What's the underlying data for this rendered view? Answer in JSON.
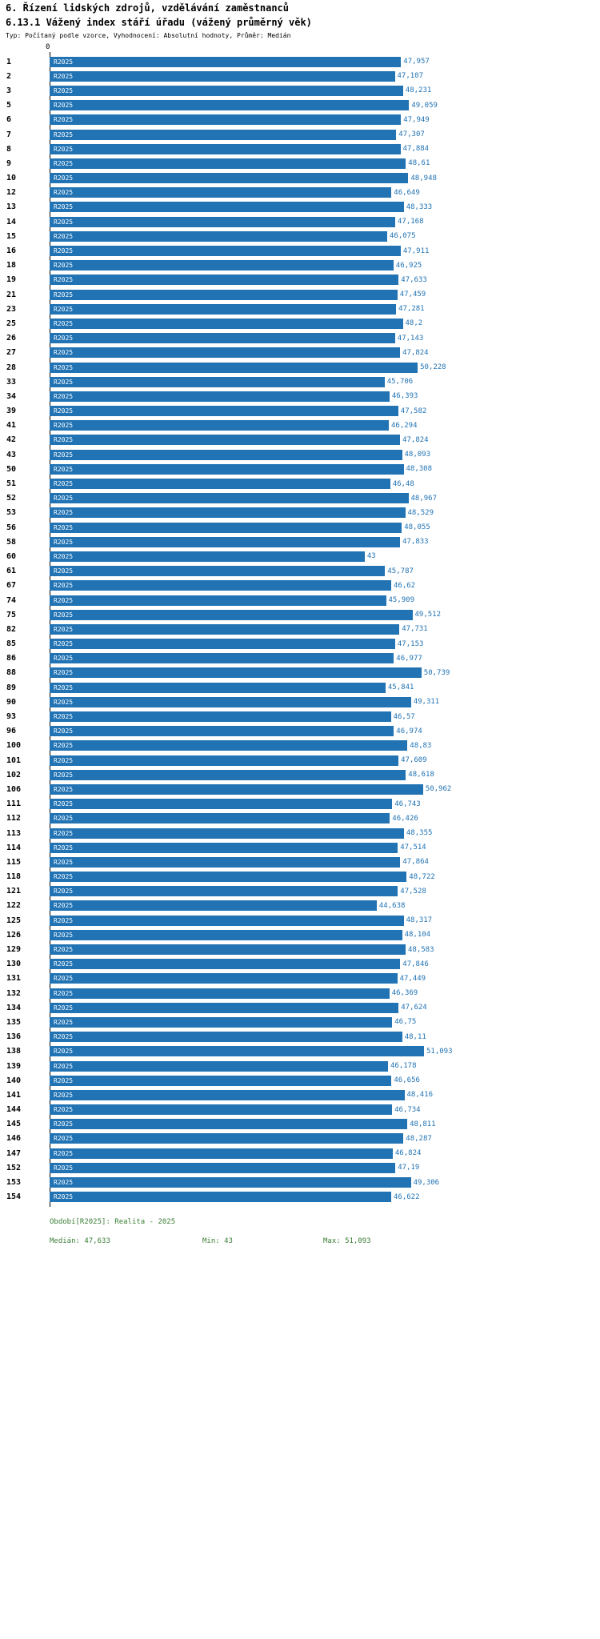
{
  "header": {
    "title_line1": "6. Řízení lidských zdrojů, vzdělávání zaměstnanců",
    "title_line2": "6.13.1 Vážený index stáří úřadu (vážený průměrný věk)",
    "subtitle": "Typ: Počítaný podle vzorce, Vyhodnocení: Absolutní hodnoty, Průměr: Medián"
  },
  "axis": {
    "zero_label": "0"
  },
  "footer": {
    "period": "Období[R2025]: Realita - 2025",
    "median": "Medián: 47,633",
    "min": "Min: 43",
    "max": "Max: 51,093"
  },
  "colors": {
    "bar": "#2173b4",
    "bar_label": "#ffffff",
    "value_label": "#2173b4",
    "footer_text": "#3a7d35",
    "row_number": "#000000"
  },
  "chart_data": {
    "type": "bar",
    "orientation": "horizontal",
    "title": "6.13.1 Vážený index stáří úřadu (vážený průměrný věk)",
    "series_label": "R2025",
    "xlim": [
      0,
      51.093
    ],
    "median": 47.633,
    "min": 43,
    "max": 51.093,
    "rows": [
      {
        "n": "1",
        "label": "47,957",
        "value": 47.957
      },
      {
        "n": "2",
        "label": "47,107",
        "value": 47.107
      },
      {
        "n": "3",
        "label": "48,231",
        "value": 48.231
      },
      {
        "n": "5",
        "label": "49,059",
        "value": 49.059
      },
      {
        "n": "6",
        "label": "47,949",
        "value": 47.949
      },
      {
        "n": "7",
        "label": "47,307",
        "value": 47.307
      },
      {
        "n": "8",
        "label": "47,884",
        "value": 47.884
      },
      {
        "n": "9",
        "label": "48,61",
        "value": 48.61
      },
      {
        "n": "10",
        "label": "48,948",
        "value": 48.948
      },
      {
        "n": "12",
        "label": "46,649",
        "value": 46.649
      },
      {
        "n": "13",
        "label": "48,333",
        "value": 48.333
      },
      {
        "n": "14",
        "label": "47,168",
        "value": 47.168
      },
      {
        "n": "15",
        "label": "46,075",
        "value": 46.075
      },
      {
        "n": "16",
        "label": "47,911",
        "value": 47.911
      },
      {
        "n": "18",
        "label": "46,925",
        "value": 46.925
      },
      {
        "n": "19",
        "label": "47,633",
        "value": 47.633
      },
      {
        "n": "21",
        "label": "47,459",
        "value": 47.459
      },
      {
        "n": "23",
        "label": "47,281",
        "value": 47.281
      },
      {
        "n": "25",
        "label": "48,2",
        "value": 48.2
      },
      {
        "n": "26",
        "label": "47,143",
        "value": 47.143
      },
      {
        "n": "27",
        "label": "47,824",
        "value": 47.824
      },
      {
        "n": "28",
        "label": "50,228",
        "value": 50.228
      },
      {
        "n": "33",
        "label": "45,706",
        "value": 45.706
      },
      {
        "n": "34",
        "label": "46,393",
        "value": 46.393
      },
      {
        "n": "39",
        "label": "47,582",
        "value": 47.582
      },
      {
        "n": "41",
        "label": "46,294",
        "value": 46.294
      },
      {
        "n": "42",
        "label": "47,824",
        "value": 47.824
      },
      {
        "n": "43",
        "label": "48,093",
        "value": 48.093
      },
      {
        "n": "50",
        "label": "48,308",
        "value": 48.308
      },
      {
        "n": "51",
        "label": "46,48",
        "value": 46.48
      },
      {
        "n": "52",
        "label": "48,967",
        "value": 48.967
      },
      {
        "n": "53",
        "label": "48,529",
        "value": 48.529
      },
      {
        "n": "56",
        "label": "48,055",
        "value": 48.055
      },
      {
        "n": "58",
        "label": "47,833",
        "value": 47.833
      },
      {
        "n": "60",
        "label": "43",
        "value": 43
      },
      {
        "n": "61",
        "label": "45,787",
        "value": 45.787
      },
      {
        "n": "67",
        "label": "46,62",
        "value": 46.62
      },
      {
        "n": "74",
        "label": "45,909",
        "value": 45.909
      },
      {
        "n": "75",
        "label": "49,512",
        "value": 49.512
      },
      {
        "n": "82",
        "label": "47,731",
        "value": 47.731
      },
      {
        "n": "85",
        "label": "47,153",
        "value": 47.153
      },
      {
        "n": "86",
        "label": "46,977",
        "value": 46.977
      },
      {
        "n": "88",
        "label": "50,739",
        "value": 50.739
      },
      {
        "n": "89",
        "label": "45,841",
        "value": 45.841
      },
      {
        "n": "90",
        "label": "49,311",
        "value": 49.311
      },
      {
        "n": "93",
        "label": "46,57",
        "value": 46.57
      },
      {
        "n": "96",
        "label": "46,974",
        "value": 46.974
      },
      {
        "n": "100",
        "label": "48,83",
        "value": 48.83
      },
      {
        "n": "101",
        "label": "47,609",
        "value": 47.609
      },
      {
        "n": "102",
        "label": "48,618",
        "value": 48.618
      },
      {
        "n": "106",
        "label": "50,962",
        "value": 50.962
      },
      {
        "n": "111",
        "label": "46,743",
        "value": 46.743
      },
      {
        "n": "112",
        "label": "46,426",
        "value": 46.426
      },
      {
        "n": "113",
        "label": "48,355",
        "value": 48.355
      },
      {
        "n": "114",
        "label": "47,514",
        "value": 47.514
      },
      {
        "n": "115",
        "label": "47,864",
        "value": 47.864
      },
      {
        "n": "118",
        "label": "48,722",
        "value": 48.722
      },
      {
        "n": "121",
        "label": "47,528",
        "value": 47.528
      },
      {
        "n": "122",
        "label": "44,638",
        "value": 44.638
      },
      {
        "n": "125",
        "label": "48,317",
        "value": 48.317
      },
      {
        "n": "126",
        "label": "48,104",
        "value": 48.104
      },
      {
        "n": "129",
        "label": "48,583",
        "value": 48.583
      },
      {
        "n": "130",
        "label": "47,846",
        "value": 47.846
      },
      {
        "n": "131",
        "label": "47,449",
        "value": 47.449
      },
      {
        "n": "132",
        "label": "46,369",
        "value": 46.369
      },
      {
        "n": "134",
        "label": "47,624",
        "value": 47.624
      },
      {
        "n": "135",
        "label": "46,75",
        "value": 46.75
      },
      {
        "n": "136",
        "label": "48,11",
        "value": 48.11
      },
      {
        "n": "138",
        "label": "51,093",
        "value": 51.093
      },
      {
        "n": "139",
        "label": "46,178",
        "value": 46.178
      },
      {
        "n": "140",
        "label": "46,656",
        "value": 46.656
      },
      {
        "n": "141",
        "label": "48,416",
        "value": 48.416
      },
      {
        "n": "144",
        "label": "46,734",
        "value": 46.734
      },
      {
        "n": "145",
        "label": "48,811",
        "value": 48.811
      },
      {
        "n": "146",
        "label": "48,287",
        "value": 48.287
      },
      {
        "n": "147",
        "label": "46,824",
        "value": 46.824
      },
      {
        "n": "152",
        "label": "47,19",
        "value": 47.19
      },
      {
        "n": "153",
        "label": "49,306",
        "value": 49.306
      },
      {
        "n": "154",
        "label": "46,622",
        "value": 46.622
      }
    ]
  }
}
